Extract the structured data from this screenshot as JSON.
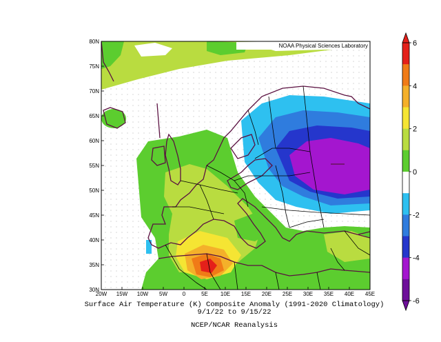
{
  "map": {
    "credit": "NOAA Physical Sciences Laboratory",
    "lat_labels": [
      "80N",
      "75N",
      "70N",
      "65N",
      "60N",
      "55N",
      "50N",
      "45N",
      "40N",
      "35N",
      "30N"
    ],
    "lon_labels": [
      "20W",
      "15W",
      "10W",
      "5W",
      "0",
      "5E",
      "10E",
      "15E",
      "20E",
      "25E",
      "30E",
      "35E",
      "40E",
      "45E"
    ],
    "extent": {
      "lon": [
        -20,
        45
      ],
      "lat": [
        30,
        80
      ]
    }
  },
  "colorbar": {
    "tick_labels": [
      "6",
      "4",
      "2",
      "0",
      "-2",
      "-4",
      "-6"
    ],
    "colors": [
      "#e4201a",
      "#f07b17",
      "#f4b02a",
      "#f5e533",
      "#b9dc40",
      "#5ccd2f",
      "#ffffff",
      "#2ec0f0",
      "#2f7cde",
      "#2536cc",
      "#a416cf",
      "#6e0f9a"
    ]
  },
  "caption": {
    "line1": "Surface Air Temperature (K) Composite Anomaly (1991-2020 Climatology)",
    "line2": "9/1/22  to 9/15/22",
    "line3": "NCEP/NCAR Reanalysis"
  }
}
